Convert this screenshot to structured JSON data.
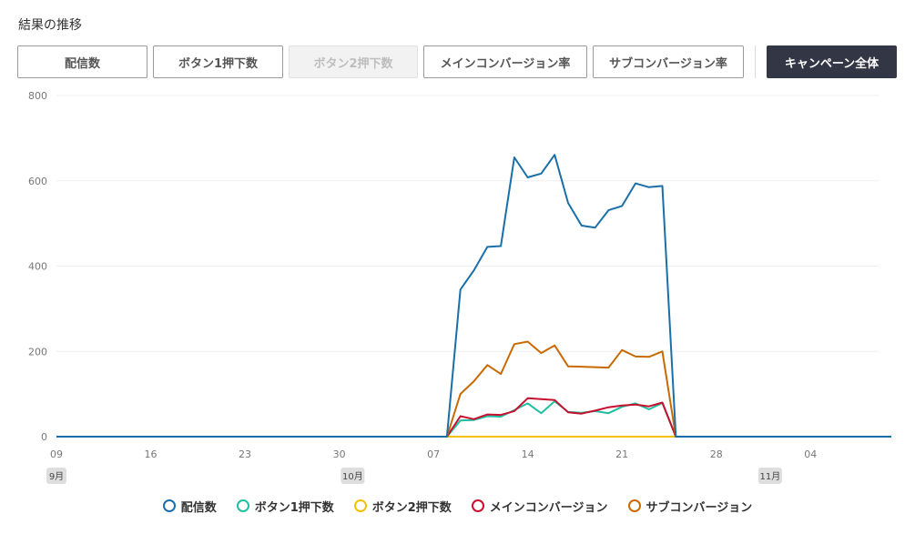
{
  "header": {
    "title": "結果の推移"
  },
  "tabs": [
    {
      "label": "配信数",
      "state": "normal"
    },
    {
      "label": "ボタン1押下数",
      "state": "normal"
    },
    {
      "label": "ボタン2押下数",
      "state": "disabled"
    },
    {
      "label": "メインコンバージョン率",
      "state": "normal"
    },
    {
      "label": "サブコンバージョン率",
      "state": "normal"
    },
    {
      "label": "キャンペーン全体",
      "state": "active"
    }
  ],
  "chart_data": {
    "type": "line",
    "title": "",
    "xlabel": "",
    "ylabel": "",
    "ylim": [
      0,
      800
    ],
    "yticks": [
      "0",
      "200",
      "400",
      "600",
      "800"
    ],
    "grid": true,
    "legend_position": "bottom",
    "x_start_day": 9,
    "x_days": 62,
    "x_tick_labels": [
      {
        "day": 0,
        "label": "09"
      },
      {
        "day": 7,
        "label": "16"
      },
      {
        "day": 14,
        "label": "23"
      },
      {
        "day": 21,
        "label": "30"
      },
      {
        "day": 28,
        "label": "07"
      },
      {
        "day": 35,
        "label": "14"
      },
      {
        "day": 42,
        "label": "21"
      },
      {
        "day": 49,
        "label": "28"
      },
      {
        "day": 56,
        "label": "04"
      }
    ],
    "month_labels": [
      {
        "day": 0,
        "label": "9月"
      },
      {
        "day": 22,
        "label": "10月"
      },
      {
        "day": 53,
        "label": "11月"
      }
    ],
    "active_start_day": 29,
    "series": [
      {
        "name": "配信数",
        "color": "#1a6fa8",
        "active_values": [
          0,
          345,
          390,
          445,
          447,
          655,
          608,
          617,
          661,
          548,
          495,
          490,
          531,
          541,
          594,
          585,
          588,
          0
        ]
      },
      {
        "name": "ボタン1押下数",
        "color": "#1fbfa2",
        "active_values": [
          0,
          38,
          39,
          48,
          47,
          62,
          78,
          55,
          83,
          58,
          56,
          60,
          55,
          70,
          78,
          64,
          79,
          0
        ]
      },
      {
        "name": "ボタン2押下数",
        "color": "#f4c000",
        "active_values": [
          0,
          0,
          0,
          0,
          0,
          0,
          0,
          0,
          0,
          0,
          0,
          0,
          0,
          0,
          0,
          0,
          0,
          0
        ]
      },
      {
        "name": "メインコンバージョン",
        "color": "#c8102e",
        "active_values": [
          0,
          48,
          41,
          52,
          51,
          60,
          90,
          88,
          86,
          57,
          54,
          61,
          69,
          73,
          75,
          71,
          80,
          0
        ]
      },
      {
        "name": "サブコンバージョン",
        "color": "#c96a00",
        "active_values": [
          0,
          100,
          130,
          168,
          147,
          217,
          223,
          196,
          214,
          165,
          164,
          163,
          162,
          203,
          188,
          187,
          200,
          0
        ]
      }
    ]
  }
}
